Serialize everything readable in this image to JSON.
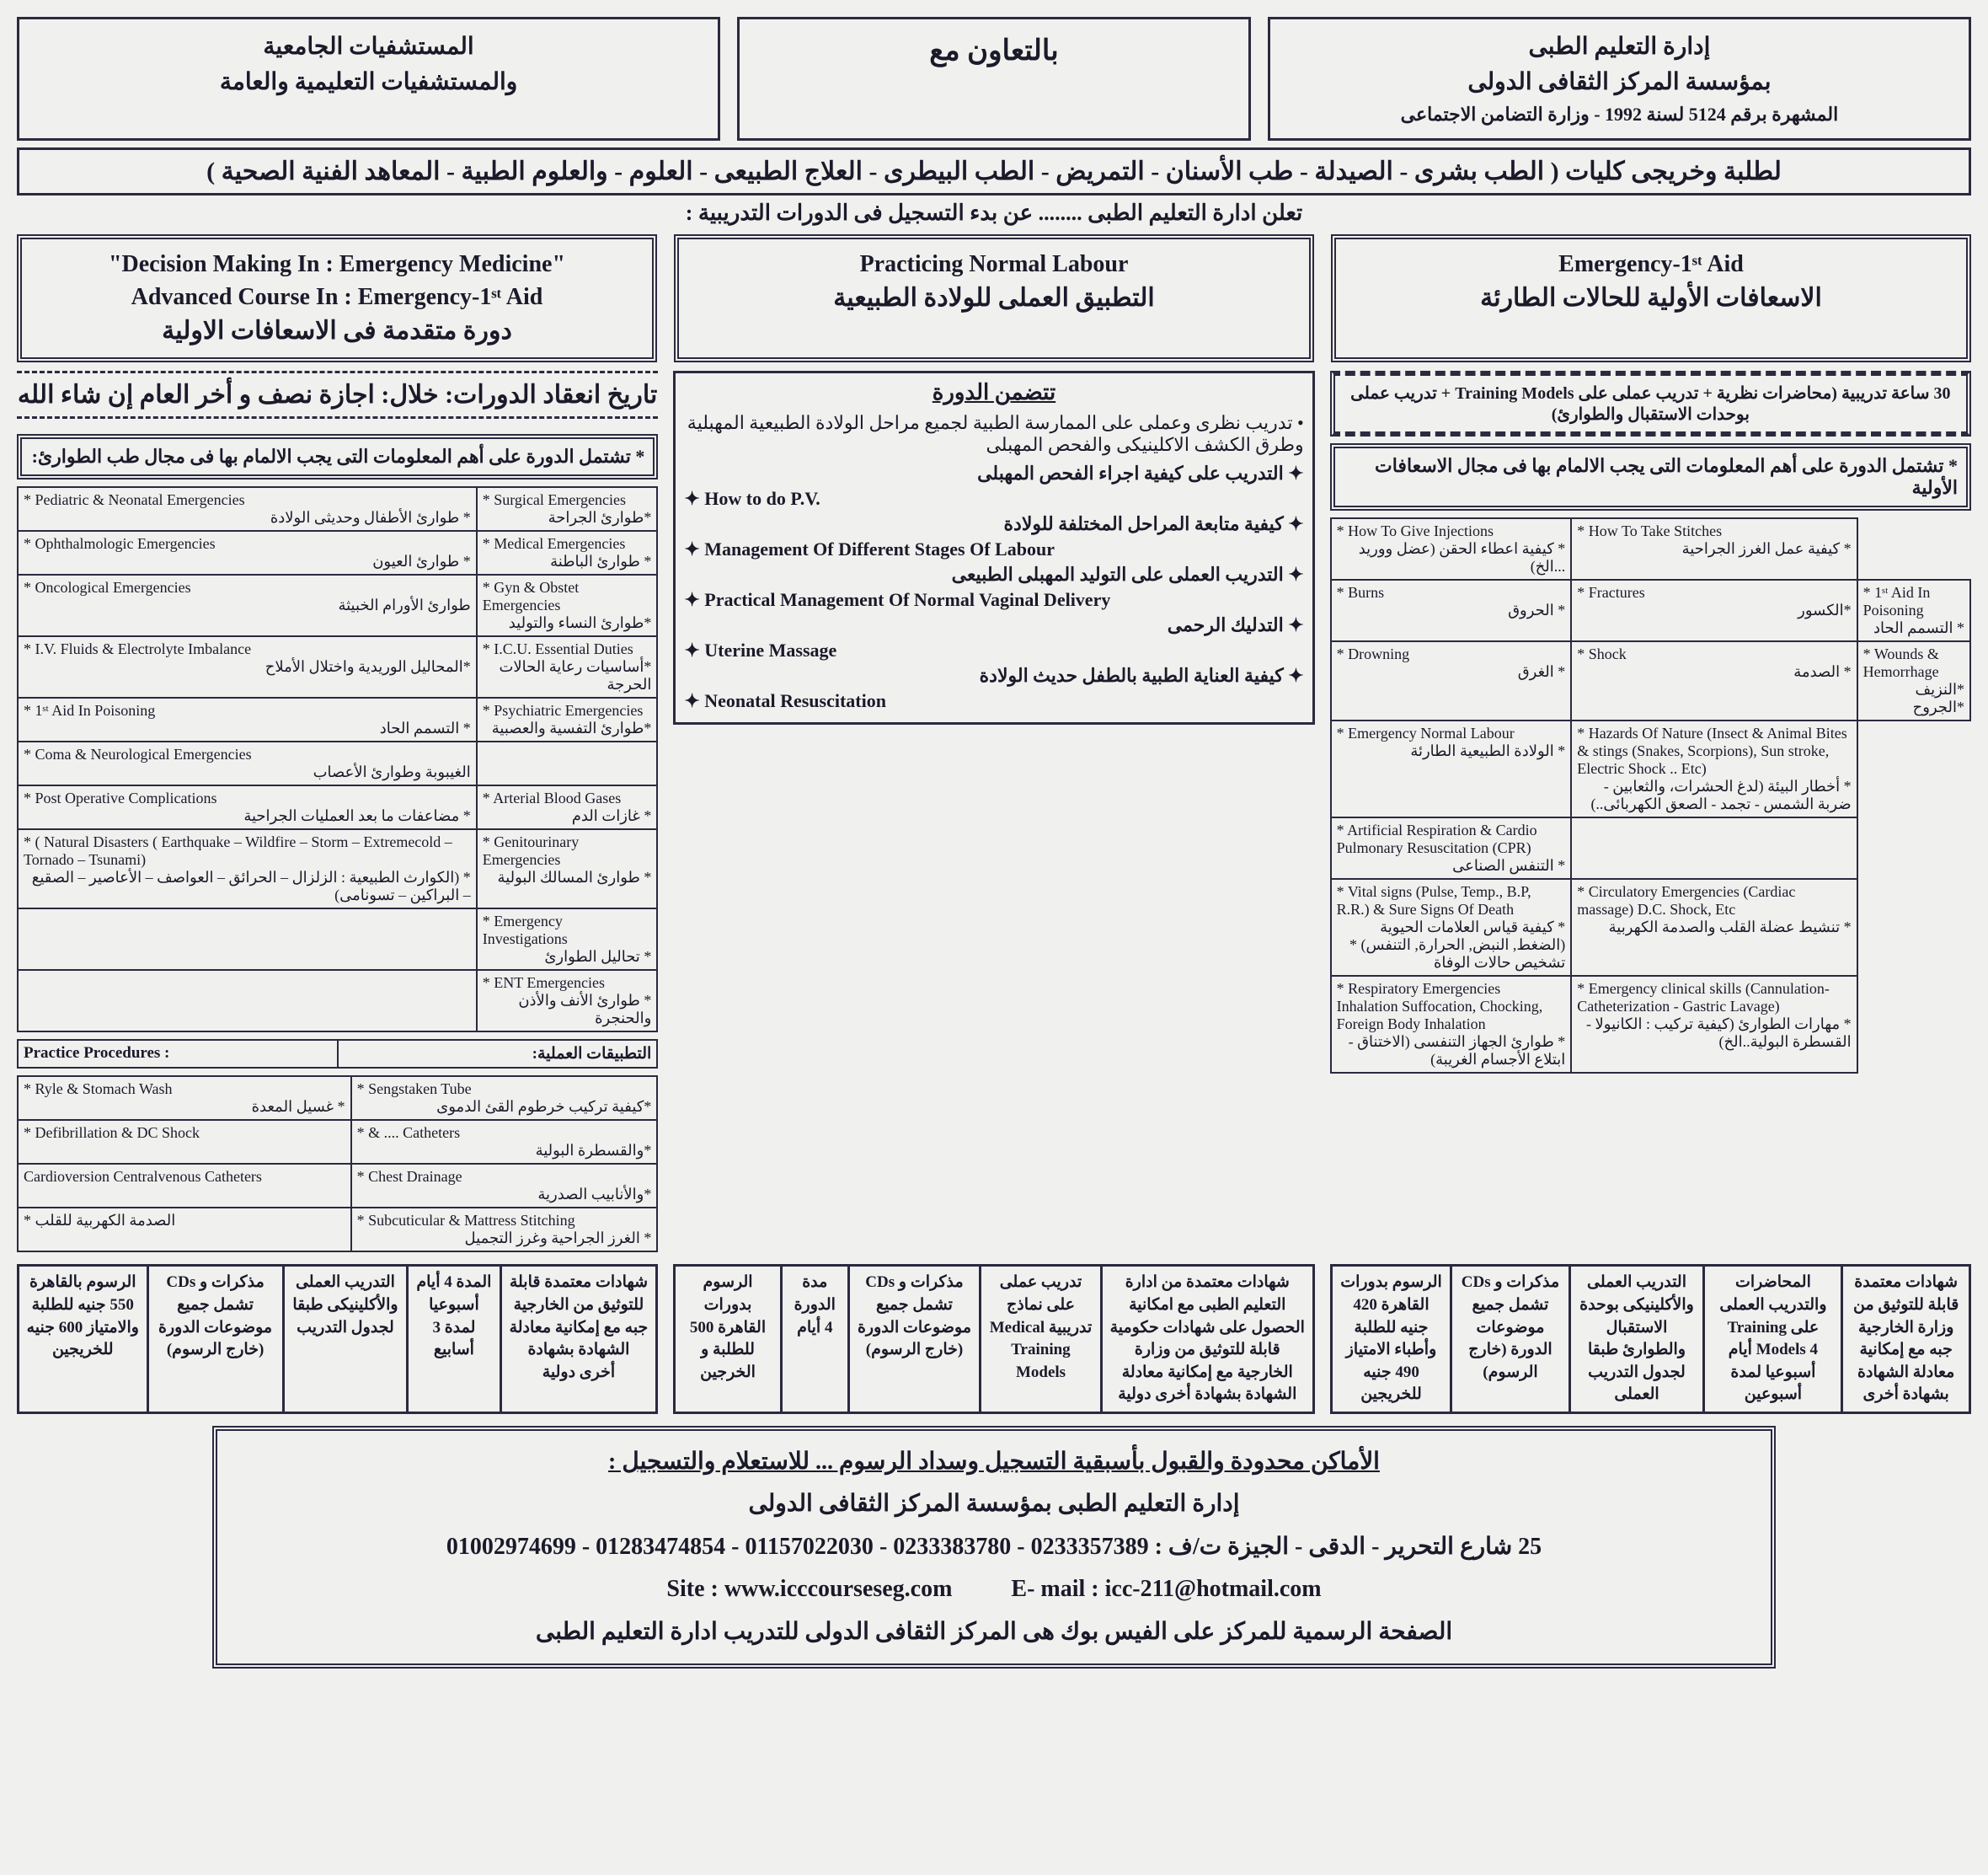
{
  "header": {
    "left_line1": "المستشفيات الجامعية",
    "left_line2": "والمستشفيات التعليمية والعامة",
    "mid": "بالتعاون مع",
    "right_line1": "إدارة التعليم الطبى",
    "right_line2": "بمؤسسة المركز الثقافى الدولى",
    "right_line3": "المشهرة برقم 5124 لسنة 1992 - وزارة التضامن الاجتماعى"
  },
  "banner": "لطلبة وخريجى كليات ( الطب بشرى - الصيدلة - طب الأسنان - التمريض - الطب البيطرى - العلاج الطبيعى - العلوم - والعلوم الطبية - المعاهد الفنية الصحية )",
  "subbanner": "تعلن ادارة التعليم الطبى ........ عن بدء التسجيل فى الدورات التدريبية :",
  "course_titles": {
    "left_en1": "\"Decision Making In : Emergency Medicine\"",
    "left_en2": "Advanced Course In : Emergency-1ˢᵗ Aid",
    "left_ar": "دورة متقدمة فى الاسعافات الاولية",
    "mid_en": "Practicing Normal Labour",
    "mid_ar": "التطبيق العملى للولادة الطبيعية",
    "right_en": "Emergency-1ˢᵗ Aid",
    "right_ar": "الاسعافات الأولية للحالات الطارئة"
  },
  "dates_line": "تاريخ انعقاد الدورات: خلال: اجازة نصف و أخر العام إن شاء الله",
  "col_left": {
    "intro": "* تشتمل الدورة على أهم المعلومات التى يجب الالمام بها فى مجال طب الطوارئ:",
    "table_rows": [
      [
        "* Pediatric & Neonatal Emergencies",
        "* طوارئ الأطفال وحديثى الولادة",
        "* Surgical Emergencies",
        "*طوارئ الجراحة"
      ],
      [
        "* Ophthalmologic Emergencies",
        "* طوارئ العيون",
        "* Medical Emergencies",
        "* طوارئ الباطنة"
      ],
      [
        "* Oncological Emergencies",
        "طوارئ الأورام الخبيثة",
        "* Gyn & Obstet Emergencies",
        "*طوارئ النساء والتوليد"
      ],
      [
        "* I.V. Fluids & Electrolyte Imbalance",
        "*المحاليل الوريدية واختلال الأملاح",
        "* I.C.U. Essential Duties",
        "*أساسيات رعاية الحالات الحرجة"
      ],
      [
        "* 1ˢᵗ Aid In Poisoning",
        "* التسمم الحاد",
        "* Psychiatric Emergencies",
        "*طوارئ التفسية والعصبية"
      ],
      [
        "* Coma & Neurological Emergencies",
        "الغيبوبة وطوارئ الأعصاب",
        "",
        ""
      ],
      [
        "* Post Operative Complications",
        "* مضاعفات ما بعد العمليات الجراحية",
        "* Arterial Blood Gases",
        "* غازات الدم"
      ],
      [
        "* ( Natural Disasters ( Earthquake – Wildfire – Storm – Extremecold – Tornado – Tsunami)",
        "* (الكوارث الطبيعية : الزلزال – الحرائق – العواصف – الأعاصير – الصقيع – البراكين – تسونامى)",
        "* Genitourinary Emergencies",
        "* طوارئ المسالك البولية"
      ],
      [
        "",
        "",
        "* Emergency Investigations",
        "* تحاليل الطوارئ"
      ],
      [
        "",
        "",
        "* ENT Emergencies",
        "* طوارئ الأنف والأذن والحنجرة"
      ]
    ],
    "practice_hdr_en": "Practice Procedures :",
    "practice_hdr_ar": "التطبيقات العملية:",
    "practice_rows": [
      [
        "* Ryle & Stomach Wash",
        "* غسيل المعدة",
        "* Sengstaken Tube",
        "*كيفية تركيب خرطوم القئ الدموى"
      ],
      [
        "* Defibrillation & DC Shock",
        "",
        "* & .... Catheters",
        "*والقسطرة البولية"
      ],
      [
        "Cardioversion Centralvenous Catheters",
        "",
        "* Chest Drainage",
        "*والأنابيب الصدرية"
      ],
      [
        "* الصدمة الكهربية للقلب",
        "",
        "* Subcuticular & Mattress Stitching",
        "* الغرز الجراحية وغرز التجميل"
      ]
    ]
  },
  "col_mid": {
    "intro_hdr": "تتضمن الدورة",
    "line1": "• تدريب نظرى وعملى على الممارسة الطبية لجميع مراحل الولادة الطبيعية المهبلية وطرق الكشف الاكلينيكى والفحص المهبلى",
    "bullets": [
      "التدريب على كيفية اجراء الفحص المهبلى",
      "How to do P.V.",
      "كيفية متابعة المراحل المختلفة للولادة",
      "Management Of Different Stages Of Labour",
      "التدريب العملى على التوليد المهبلى الطبيعى",
      "Practical Management Of Normal Vaginal Delivery",
      "التدليك الرحمى",
      "Uterine Massage",
      "كيفية العناية الطبية بالطفل حديث الولادة",
      "Neonatal Resuscitation"
    ]
  },
  "col_right": {
    "hours_line": "30 ساعة تدريبية (محاضرات نظرية + تدريب عملى على Training Models + تدريب عملى بوحدات الاستقبال والطوارئ)",
    "intro": "* تشتمل الدورة على أهم المعلومات التى يجب الالمام بها فى مجال الاسعافات الأولية",
    "table_rows": [
      [
        "* How To Give Injections",
        "* كيفية اعطاء الحقن (عضل ووريد ...الخ)",
        "* How To Take Stitches",
        "* كيفية عمل الغرز الجراحية"
      ],
      [
        "* Burns",
        "* الحروق",
        "* Fractures",
        "*الكسور",
        "* 1ˢᵗ Aid In Poisoning",
        "* التسمم الحاد"
      ],
      [
        "* Drowning",
        "* الغرق",
        "* Shock",
        "* الصدمة",
        "* Wounds & Hemorrhage",
        "*النزيف *الجروح"
      ],
      [
        "* Emergency Normal Labour",
        "* الولادة الطبيعية الطارئة",
        "* Hazards Of Nature (Insect & Animal Bites & stings (Snakes, Scorpions), Sun stroke, Electric Shock .. Etc)",
        "* أخطار البيئة (لدغ الحشرات، والثعابين - ضربة الشمس - تجمد - الصعق الكهربائى..)"
      ],
      [
        "* Artificial Respiration & Cardio Pulmonary Resuscitation (CPR)",
        "* التنفس الصناعى",
        "",
        ""
      ],
      [
        "* Vital signs (Pulse, Temp., B.P, R.R.) & Sure Signs Of Death",
        "* كيفية قياس العلامات الحيوية (الضغط, النبض, الحرارة, التنفس) * تشخيص حالات الوفاة",
        "* Circulatory Emergencies (Cardiac massage) D.C. Shock, Etc",
        "* تنشيط عضلة القلب والصدمة الكهربية"
      ],
      [
        "* Respiratory Emergencies Inhalation Suffocation, Chocking, Foreign Body Inhalation",
        "* طوارئ الجهاز التنفسى (الاختناق - ابتلاع الأجسام الغريبة)",
        "* Emergency clinical skills (Cannulation- Catheterization - Gastric Lavage)",
        "* مهارات الطوارئ (كيفية تركيب : الكانيولا - القسطرة البولية..الخ)"
      ]
    ]
  },
  "info_tables": {
    "left_cols": [
      "شهادات معتمدة قابلة للتوثيق من الخارجية جبه مع إمكانية معادلة الشهادة بشهادة أخرى دولية",
      "المدة 4 أيام أسبوعيا لمدة 3 أسابيع",
      "التدريب العملى والأكلينيكى طبقا لجدول التدريب",
      "مذكرات و CDs تشمل جميع موضوعات الدورة (خارج الرسوم)",
      "الرسوم بالقاهرة 550 جنيه للطلبة والامتياز 600 جنيه للخريجين"
    ],
    "mid_cols": [
      "شهادات معتمدة من ادارة التعليم الطبى مع امكانية الحصول على شهادات حكومية قابلة للتوثيق من وزارة الخارجية مع إمكانية معادلة الشهادة بشهادة أخرى دولية",
      "تدريب عملى على نماذج تدريبية Medical Training Models",
      "مذكرات و CDs تشمل جميع موضوعات الدورة (خارج الرسوم)",
      "مدة الدورة 4 أيام",
      "الرسوم بدورات القاهرة 500 للطلبة و الخرجين"
    ],
    "right_cols": [
      "شهادات معتمدة قابلة للتوثيق من وزارة الخارجية جبه مع إمكانية معادلة الشهادة بشهادة أخرى",
      "المحاضرات والتدريب العملى على Training Models 4 أيام أسبوعيا لمدة أسبوعين",
      "التدريب العملى والأكلينيكى بوحدة الاستقبال والطوارئ طبقا لجدول التدريب العملى",
      "مذكرات و CDs تشمل جميع موضوعات الدورة (خارج الرسوم)",
      "الرسوم بدورات القاهرة 420 جنيه للطلبة وأطباء الامتياز 490 جنيه للخريجين"
    ]
  },
  "footer": {
    "l1": "الأماكن محدودة والقبول بأسبقية التسجيل وسداد الرسوم ... للاستعلام والتسجيل :",
    "l2": "إدارة التعليم الطبى بمؤسسة المركز الثقافى الدولى",
    "l3": "25 شارع التحرير - الدقى - الجيزة ت/ف : 0233357389 - 0233383780 - 01157022030 - 01283474854 - 01002974699",
    "l4a": "Site : www.icccourseseg.com",
    "l4b": "E- mail : icc-211@hotmail.com",
    "l5": "الصفحة الرسمية للمركز على الفيس بوك هى المركز الثقافى الدولى للتدريب ادارة التعليم الطبى"
  }
}
